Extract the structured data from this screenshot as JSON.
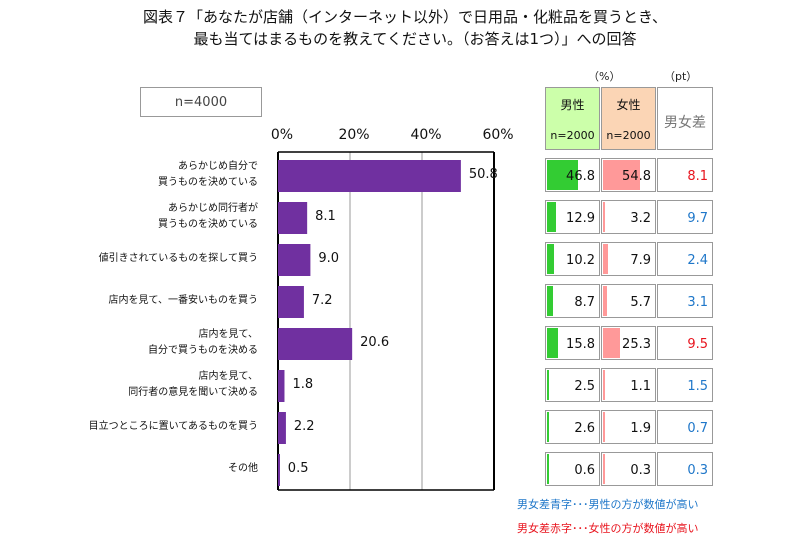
{
  "title_line1": "図表７「あなたが店舗（インターネット以外）で日用品・化粧品を買うとき、",
  "title_line2": "最も当てはまるものを教えてください。（お答えは1つ）」への回答",
  "sample_label": "n=4000",
  "unit_pct": "（%）",
  "unit_pt": "（pt）",
  "table": {
    "male_header": "男性",
    "male_n": "n=2000",
    "female_header": "女性",
    "female_n": "n=2000",
    "diff_header": "男女差"
  },
  "legend": {
    "blue": "男女差青字･･･男性の方が数値が高い",
    "red": "男女差赤字･･･女性の方が数値が高い"
  },
  "colors": {
    "bar": "#7030a0",
    "male_bg": "#ccffaa",
    "female_bg": "#fbd5b5",
    "male_bar": "#33cc33",
    "female_bar": "#ff9999",
    "blue": "#1f77c9",
    "red": "#e8141e"
  },
  "chart_data": {
    "type": "bar",
    "orientation": "horizontal",
    "xlim": [
      0,
      60
    ],
    "ticks": [
      "0%",
      "20%",
      "40%",
      "60%"
    ],
    "tick_values": [
      0,
      20,
      40,
      60
    ],
    "categories": [
      "あらかじめ自分で\n買うものを決めている",
      "あらかじめ同行者が\n買うものを決めている",
      "値引きされているものを探して買う",
      "店内を見て、一番安いものを買う",
      "店内を見て、\n自分で買うものを決める",
      "店内を見て、\n同行者の意見を聞いて決める",
      "目立つところに置いてあるものを買う",
      "その他"
    ],
    "values": [
      50.8,
      8.1,
      9.0,
      7.2,
      20.6,
      1.8,
      2.2,
      0.5
    ],
    "value_labels": [
      "50.8",
      "8.1",
      "9.0",
      "7.2",
      "20.6",
      "1.8",
      "2.2",
      "0.5"
    ],
    "male": [
      46.8,
      12.9,
      10.2,
      8.7,
      15.8,
      2.5,
      2.6,
      0.6
    ],
    "male_labels": [
      "46.8",
      "12.9",
      "10.2",
      "8.7",
      "15.8",
      "2.5",
      "2.6",
      "0.6"
    ],
    "female": [
      54.8,
      3.2,
      7.9,
      5.7,
      25.3,
      1.1,
      1.9,
      0.3
    ],
    "female_labels": [
      "54.8",
      "3.2",
      "7.9",
      "5.7",
      "25.3",
      "1.1",
      "1.9",
      "0.3"
    ],
    "diff_labels": [
      "8.1",
      "9.7",
      "2.4",
      "3.1",
      "9.5",
      "1.5",
      "0.7",
      "0.3"
    ],
    "diff_color": [
      "red",
      "blue",
      "blue",
      "blue",
      "red",
      "blue",
      "blue",
      "blue"
    ]
  }
}
